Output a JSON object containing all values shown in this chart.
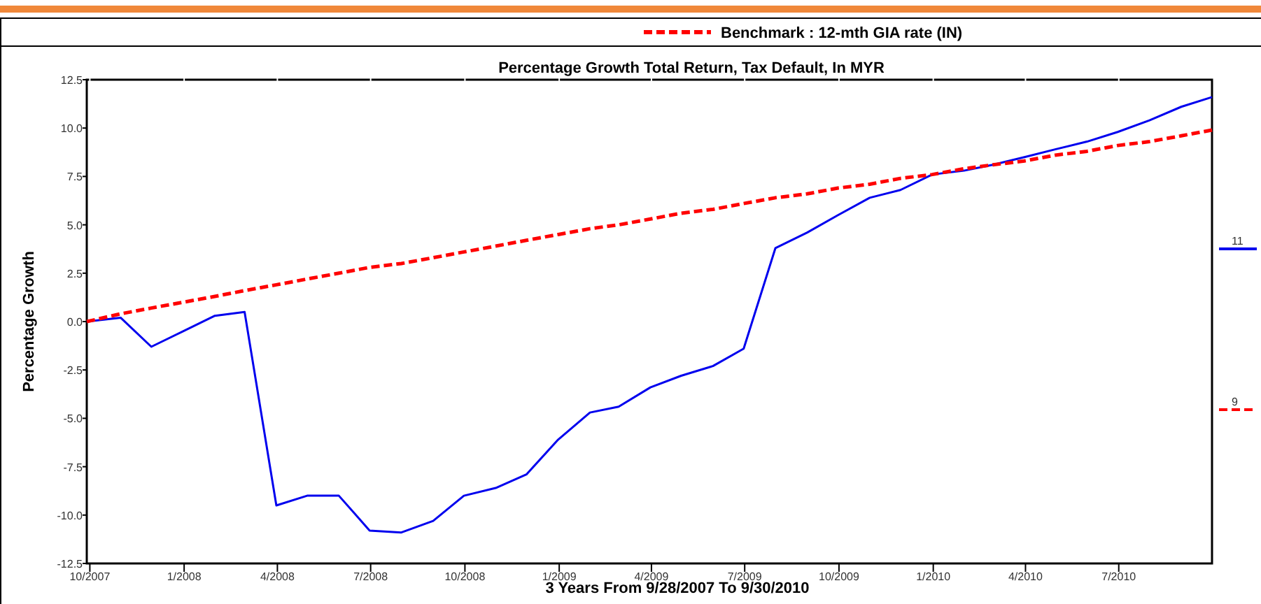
{
  "chart_data": {
    "type": "line",
    "title": "Percentage Growth Total Return, Tax Default, In MYR",
    "xlabel": "3 Years From 9/28/2007 To 9/30/2010",
    "ylabel": "Percentage Growth",
    "x": [
      "2007-09-28",
      "2007-10-31",
      "2007-11-30",
      "2007-12-31",
      "2008-01-31",
      "2008-02-29",
      "2008-03-31",
      "2008-04-30",
      "2008-05-31",
      "2008-06-30",
      "2008-07-31",
      "2008-08-31",
      "2008-09-30",
      "2008-10-31",
      "2008-11-30",
      "2008-12-31",
      "2009-01-31",
      "2009-02-28",
      "2009-03-31",
      "2009-04-30",
      "2009-05-31",
      "2009-06-30",
      "2009-07-31",
      "2009-08-31",
      "2009-09-30",
      "2009-10-31",
      "2009-11-30",
      "2009-12-31",
      "2010-01-31",
      "2010-02-28",
      "2010-03-31",
      "2010-04-30",
      "2010-05-31",
      "2010-06-30",
      "2010-07-31",
      "2010-08-31",
      "2010-09-30"
    ],
    "series": [
      {
        "color": "#0000ee",
        "line_style": "solid",
        "values": [
          0,
          0.2,
          -1.3,
          -0.5,
          0.3,
          0.5,
          -9.5,
          -9.0,
          -9.0,
          -10.8,
          -10.9,
          -10.3,
          -9.0,
          -8.6,
          -7.9,
          -6.1,
          -4.7,
          -4.4,
          -3.4,
          -2.8,
          -2.3,
          -1.4,
          3.8,
          4.6,
          5.5,
          6.4,
          6.8,
          7.6,
          7.8,
          8.1,
          8.5,
          8.9,
          9.3,
          9.8,
          10.4,
          11.1,
          11.6
        ]
      },
      {
        "name": "Benchmark : 12-mth GIA rate (IN)",
        "color": "#ff0000",
        "line_style": "dashed",
        "values": [
          0,
          0.4,
          0.7,
          1.0,
          1.3,
          1.6,
          1.9,
          2.2,
          2.5,
          2.8,
          3.0,
          3.3,
          3.6,
          3.9,
          4.2,
          4.5,
          4.8,
          5.0,
          5.3,
          5.6,
          5.8,
          6.1,
          6.4,
          6.6,
          6.9,
          7.1,
          7.4,
          7.6,
          7.9,
          8.1,
          8.3,
          8.6,
          8.8,
          9.1,
          9.3,
          9.6,
          9.9
        ]
      }
    ],
    "xlim": [
      "2007-09-28",
      "2010-09-30"
    ],
    "xticks": [
      {
        "value": "2007-10-01",
        "label": "10/2007"
      },
      {
        "value": "2008-01-01",
        "label": "1/2008"
      },
      {
        "value": "2008-04-01",
        "label": "4/2008"
      },
      {
        "value": "2008-07-01",
        "label": "7/2008"
      },
      {
        "value": "2008-10-01",
        "label": "10/2008"
      },
      {
        "value": "2009-01-01",
        "label": "1/2009"
      },
      {
        "value": "2009-04-01",
        "label": "4/2009"
      },
      {
        "value": "2009-07-01",
        "label": "7/2009"
      },
      {
        "value": "2009-10-01",
        "label": "10/2009"
      },
      {
        "value": "2010-01-01",
        "label": "1/2010"
      },
      {
        "value": "2010-04-01",
        "label": "4/2010"
      },
      {
        "value": "2010-07-01",
        "label": "7/2010"
      }
    ],
    "ylim": [
      -12.5,
      12.5
    ],
    "yticks": [
      {
        "value": 12.5,
        "label": "12.5"
      },
      {
        "value": 10,
        "label": "10.0"
      },
      {
        "value": 7.5,
        "label": "7.5"
      },
      {
        "value": 5,
        "label": "5.0"
      },
      {
        "value": 2.5,
        "label": "2.5"
      },
      {
        "value": 0,
        "label": "0.0"
      },
      {
        "value": -2.5,
        "label": "-2.5"
      },
      {
        "value": -5,
        "label": "-5.0"
      },
      {
        "value": -7.5,
        "label": "-7.5"
      },
      {
        "value": -10,
        "label": "-10.0"
      },
      {
        "value": -12.5,
        "label": "-12.5"
      }
    ],
    "annotations": [
      "11",
      "9"
    ],
    "grid": false,
    "legend": "top",
    "marker": "none"
  }
}
